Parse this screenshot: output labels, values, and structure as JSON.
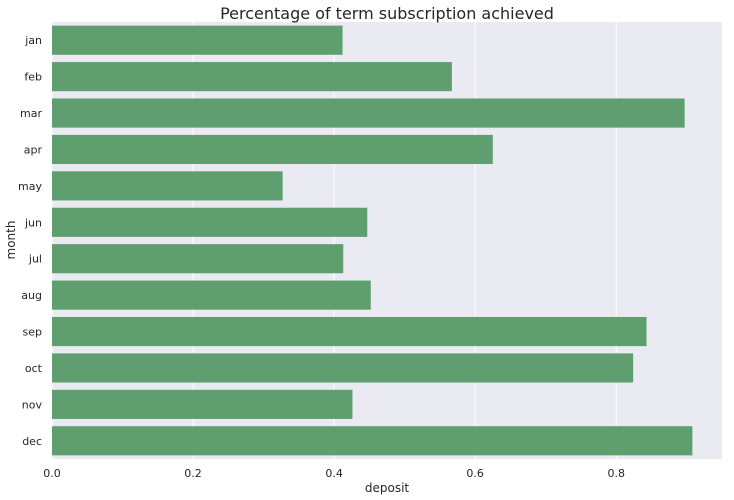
{
  "chart_data": {
    "type": "bar",
    "orientation": "horizontal",
    "title": "Percentage of term subscription achieved",
    "xlabel": "deposit",
    "ylabel": "month",
    "categories": [
      "jan",
      "feb",
      "mar",
      "apr",
      "may",
      "jun",
      "jul",
      "aug",
      "sep",
      "oct",
      "nov",
      "dec"
    ],
    "values": [
      0.412,
      0.567,
      0.897,
      0.625,
      0.327,
      0.447,
      0.413,
      0.452,
      0.843,
      0.824,
      0.426,
      0.908
    ],
    "xlim": [
      0,
      0.95
    ],
    "xticks": [
      0.0,
      0.2,
      0.4,
      0.6,
      0.8
    ],
    "xtick_labels": [
      "0.0",
      "0.2",
      "0.4",
      "0.6",
      "0.8"
    ],
    "grid": true,
    "bar_color": "#5f9e6e",
    "plot_background": "#eaeaf2",
    "grid_color": "#ffffff"
  }
}
